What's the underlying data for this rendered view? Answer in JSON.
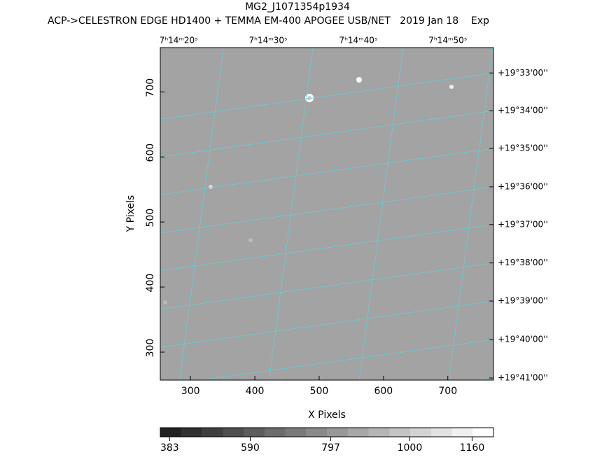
{
  "chart_data": {
    "type": "image",
    "title": "MG2_J1071354p1934",
    "subtitle": "ACP->CELESTRON EDGE HD1400 + TEMMA EM-400 APOGEE USB/NET   2019 Jan 18    Exp",
    "x_label": "X Pixels",
    "y_label": "Y Pixels",
    "xlim": [
      253,
      771
    ],
    "ylim": [
      257,
      768
    ],
    "xticks": [
      300,
      400,
      500,
      600,
      700
    ],
    "yticks": [
      300,
      400,
      500,
      600,
      700
    ],
    "x2ticks": [
      {
        "value": 281.5,
        "label": "7ʰ14ᵐ20ˢ"
      },
      {
        "value": 420.6,
        "label": "7ʰ14ᵐ30ˢ"
      },
      {
        "value": 560.9,
        "label": "7ʰ14ᵐ40ˢ"
      },
      {
        "value": 700,
        "label": "7ʰ14ᵐ50ˢ"
      }
    ],
    "y2ticks": [
      {
        "value": 729,
        "label": "+19°33'00''"
      },
      {
        "value": 671,
        "label": "+19°34'00''"
      },
      {
        "value": 613,
        "label": "+19°35'00''"
      },
      {
        "value": 554,
        "label": "+19°36'00''"
      },
      {
        "value": 496,
        "label": "+19°37'00''"
      },
      {
        "value": 437,
        "label": "+19°38'00''"
      },
      {
        "value": 378.5,
        "label": "+19°39'00''"
      },
      {
        "value": 319.4,
        "label": "+19°40'00''"
      },
      {
        "value": 260.2,
        "label": "+19°41'00''"
      }
    ],
    "grid_color": "#5fd3d6",
    "clim": [
      359,
      1215
    ],
    "cticks": [
      383,
      590,
      797,
      1000,
      1160
    ]
  }
}
